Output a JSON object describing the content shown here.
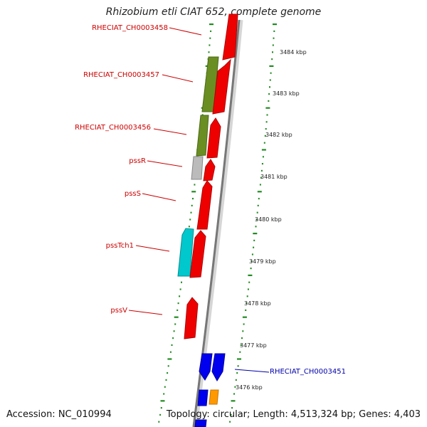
{
  "title": "Rhizobium etli CIAT 652, complete genome",
  "accession": "Accession: NC_010994",
  "summary": "Topology: circular; Length: 4,513,324 bp; Genes: 4,403",
  "colors": {
    "red": "#ee0000",
    "green": "#6b8e23",
    "gray": "#bbbbbb",
    "cyan": "#00c8cc",
    "blue": "#0000ee",
    "orange": "#ff9900",
    "ticks": "#228b22",
    "label_red": "#cc0000",
    "label_blue": "#0000aa"
  },
  "scale_labels": [
    "3484 kbp",
    "3483 kbp",
    "3482 kbp",
    "3481 kbp",
    "3480 kbp",
    "3479 kbp",
    "3478 kbp",
    "3477 kbp",
    "3476 kbp"
  ],
  "gene_labels": [
    "RHECIAT_CH0003458",
    "RHECIAT_CH0003457",
    "RHECIAT_CH0003456",
    "pssR",
    "pssS",
    "pssTch1",
    "pssV",
    "RHECIAT_CH0003451"
  ]
}
